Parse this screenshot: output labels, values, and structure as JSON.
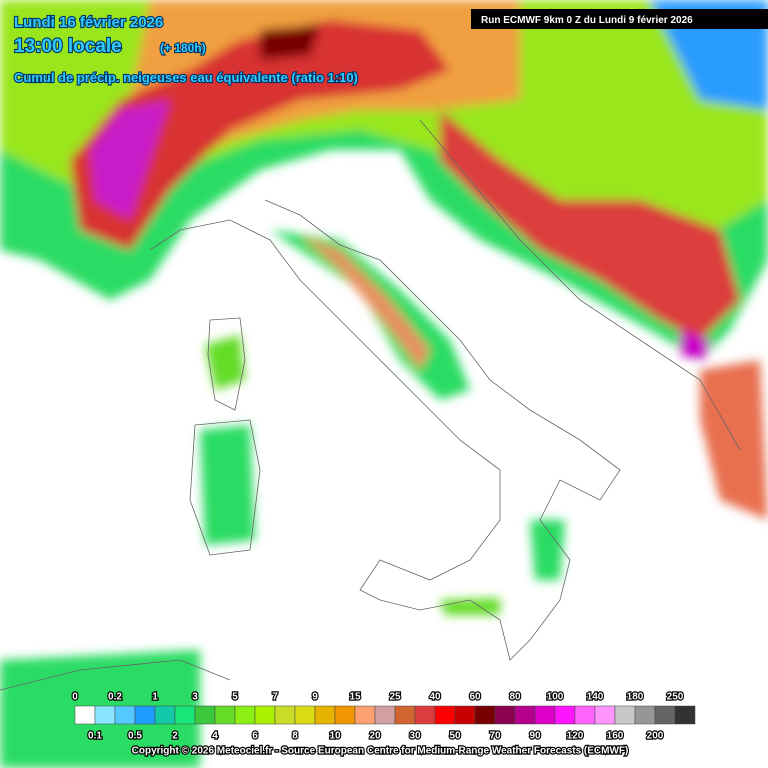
{
  "header": {
    "date": "Lundi 16 février 2026",
    "time": "13:00 locale",
    "lead": "(+ 180h)",
    "subtitle": "Cumul de précip. neigeuses  eau équivalente (ratio 1:10)",
    "run": "Run ECMWF 9km 0 Z du Lundi 9 février 2026"
  },
  "legend": {
    "stops": [
      0,
      0.1,
      0.2,
      0.5,
      1,
      2,
      3,
      4,
      5,
      6,
      7,
      8,
      9,
      10,
      15,
      20,
      25,
      30,
      40,
      50,
      60,
      70,
      80,
      90,
      100,
      120,
      140,
      160,
      180,
      200,
      250
    ],
    "colors": [
      "#ffffff",
      "#8ae6ff",
      "#55c8ff",
      "#1e9cff",
      "#14c8aa",
      "#19e678",
      "#3cc83c",
      "#64dc28",
      "#8cf014",
      "#aaf000",
      "#c8dc28",
      "#dcdc14",
      "#e6b400",
      "#f09600",
      "#ffa070",
      "#d2a0a0",
      "#d26432",
      "#dc3c3c",
      "#ff0000",
      "#c80000",
      "#780000",
      "#8c0050",
      "#b4008c",
      "#dc00c8",
      "#ff14ff",
      "#ff64ff",
      "#ff96ff",
      "#c8c8c8",
      "#969696",
      "#646464",
      "#323232"
    ]
  },
  "footer": {
    "copyright": "Copyright © 2026 Meteociel.fr - Source European Centre for Medium-Range Weather Forecasts (ECMWF)"
  }
}
